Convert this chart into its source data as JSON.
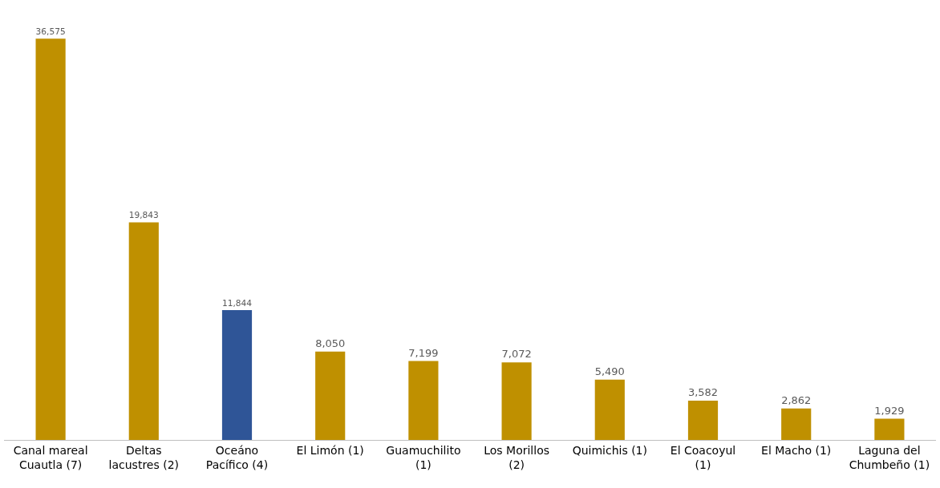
{
  "chart_data": {
    "type": "bar",
    "categories": [
      "Canal mareal\nCuautla (7)",
      "Deltas\nlacustres (2)",
      "Oceáno\nPacífico (4)",
      "El Limón (1)",
      "Guamuchilito\n(1)",
      "Los Morillos\n(2)",
      "Quimichis (1)",
      "El Coacoyul\n(1)",
      "El Macho (1)",
      "Laguna del\nChumbeño (1)"
    ],
    "values": [
      36575,
      19843,
      11844,
      8050,
      7199,
      7072,
      5490,
      3582,
      2862,
      1929
    ],
    "colors": [
      "#bf9000",
      "#bf9000",
      "#2f5597",
      "#bf9000",
      "#bf9000",
      "#bf9000",
      "#bf9000",
      "#bf9000",
      "#bf9000",
      "#bf9000"
    ],
    "value_labels": [
      "36,575",
      "19,843",
      "11,844",
      "8,050",
      "7,199",
      "7,072",
      "5,490",
      "3,582",
      "2,862",
      "1,929"
    ]
  }
}
